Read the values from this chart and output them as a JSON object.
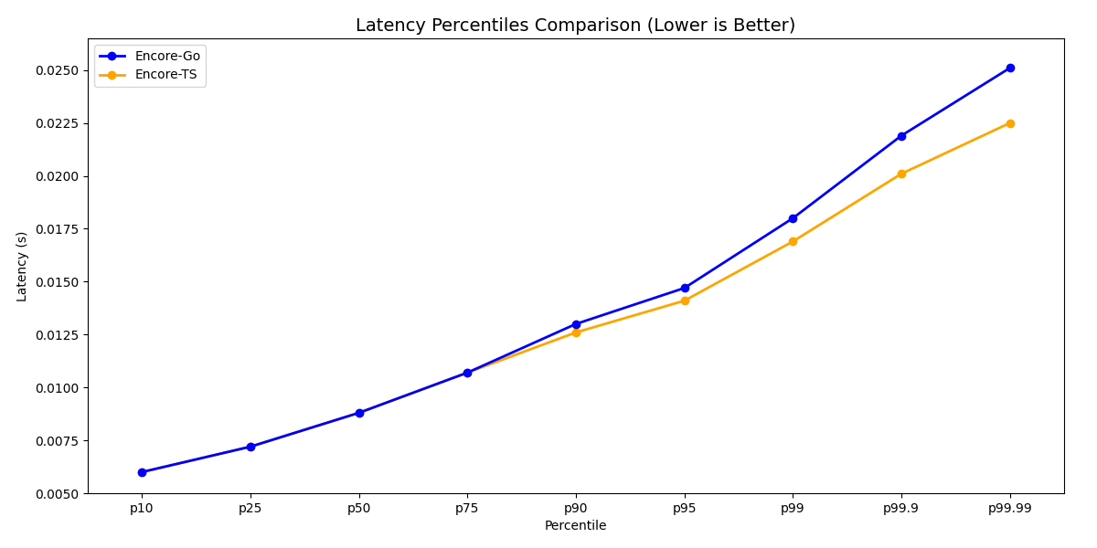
{
  "title": "Latency Percentiles Comparison (Lower is Better)",
  "xlabel": "Percentile",
  "ylabel": "Latency (s)",
  "percentiles": [
    "p10",
    "p25",
    "p50",
    "p75",
    "p90",
    "p95",
    "p99",
    "p99.9",
    "p99.99"
  ],
  "encore_go": [
    0.006,
    0.0072,
    0.0088,
    0.0107,
    0.013,
    0.0147,
    0.018,
    0.0219,
    0.0251
  ],
  "encore_ts": [
    0.006,
    0.0072,
    0.0088,
    0.0107,
    0.0126,
    0.0141,
    0.0169,
    0.0201,
    0.0225
  ],
  "go_color": "#0000ff",
  "ts_color": "#ffa500",
  "go_label": "Encore-Go",
  "ts_label": "Encore-TS",
  "linewidth": 2,
  "markersize": 6,
  "ylim_min": 0.005,
  "ylim_max": 0.0265,
  "background_color": "#ffffff",
  "title_fontsize": 14
}
